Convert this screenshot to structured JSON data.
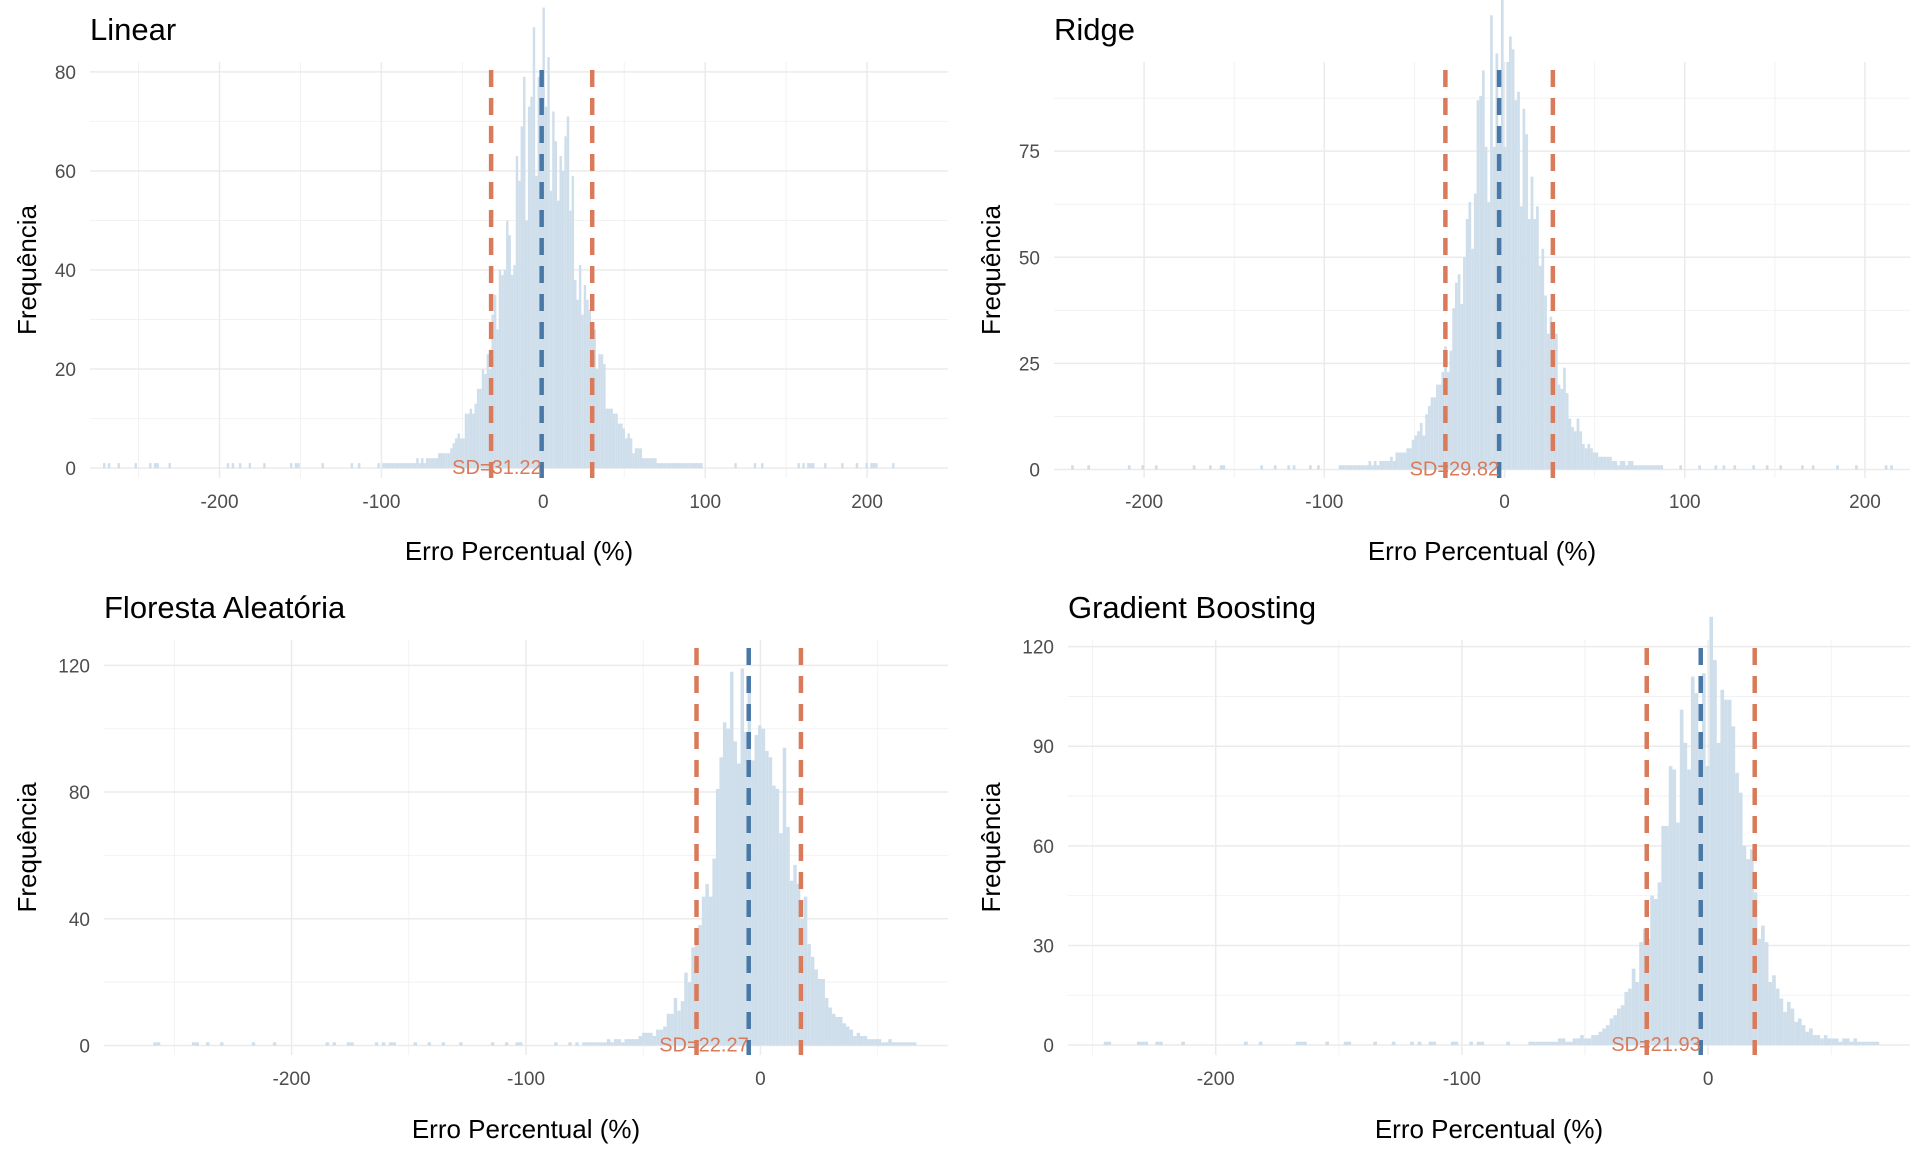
{
  "colors": {
    "bars": "#cfdeeb",
    "mean_line": "#4a78a6",
    "sd_line": "#d97b5a",
    "grid": "#ebebeb"
  },
  "chart_data": [
    {
      "type": "bar",
      "title": "Linear",
      "xlabel": "Erro Percentual (%)",
      "ylabel": "Frequência",
      "xlim": [
        -280,
        250
      ],
      "ylim": [
        -2,
        82
      ],
      "xticks": [
        -200,
        -100,
        0,
        100,
        200
      ],
      "yticks": [
        0,
        20,
        40,
        60,
        80
      ],
      "grid": true,
      "mean": -1,
      "sd": 31.22,
      "sd_label": "SD=31.22",
      "distribution": {
        "center": -1,
        "scale": 22,
        "peak": 78,
        "min": -275,
        "max": 225
      }
    },
    {
      "type": "bar",
      "title": "Ridge",
      "xlabel": "Erro Percentual (%)",
      "ylabel": "Frequência",
      "xlim": [
        -250,
        225
      ],
      "ylim": [
        -2,
        96
      ],
      "xticks": [
        -200,
        -100,
        0,
        100,
        200
      ],
      "yticks": [
        0,
        25,
        50,
        75
      ],
      "grid": true,
      "mean": -3,
      "sd": 29.82,
      "sd_label": "SD=29.82",
      "distribution": {
        "center": -3,
        "scale": 20,
        "peak": 92,
        "min": -245,
        "max": 220
      }
    },
    {
      "type": "bar",
      "title": "Floresta Aleatória",
      "xlabel": "Erro Percentual (%)",
      "ylabel": "Frequência",
      "xlim": [
        -280,
        80
      ],
      "ylim": [
        -3,
        128
      ],
      "xticks": [
        -200,
        -100,
        0
      ],
      "yticks": [
        0,
        40,
        80,
        120
      ],
      "grid": true,
      "mean": -5,
      "sd": 22.27,
      "sd_label": "SD=22.27",
      "distribution": {
        "center": -4,
        "scale": 15,
        "peak": 122,
        "min": -265,
        "max": 65
      }
    },
    {
      "type": "bar",
      "title": "Gradient Boosting",
      "xlabel": "Erro Percentual (%)",
      "ylabel": "Frequência",
      "xlim": [
        -260,
        82
      ],
      "ylim": [
        -3,
        122
      ],
      "xticks": [
        -200,
        -100,
        0
      ],
      "yticks": [
        0,
        30,
        60,
        90,
        120
      ],
      "grid": true,
      "mean": -3,
      "sd": 21.93,
      "sd_label": "SD=21.93",
      "distribution": {
        "center": -2,
        "scale": 15,
        "peak": 115,
        "min": -250,
        "max": 68
      }
    }
  ]
}
